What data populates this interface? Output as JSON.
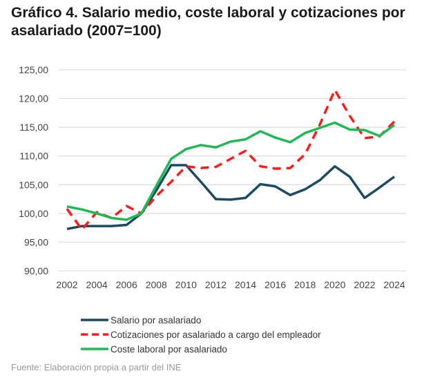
{
  "title": "Gráfico 4. Salario medio, coste laboral y cotizaciones por asalariado (2007=100)",
  "source": "Fuente: Elaboración propia a partir del INE",
  "chart_data": {
    "type": "line",
    "title": "Gráfico 4. Salario medio, coste laboral y cotizaciones por asalariado (2007=100)",
    "xlabel": "",
    "ylabel": "",
    "ylim": [
      90,
      125
    ],
    "yticks": [
      "90,00",
      "95,00",
      "100,00",
      "105,00",
      "110,00",
      "115,00",
      "120,00",
      "125,00"
    ],
    "xtick_labels": [
      "2002",
      "2004",
      "2006",
      "2008",
      "2010",
      "2012",
      "2014",
      "2016",
      "2018",
      "2020",
      "2022",
      "2024"
    ],
    "grid": true,
    "legend_placement": "bottom",
    "x": [
      2002,
      2003,
      2004,
      2005,
      2006,
      2007,
      2008,
      2009,
      2010,
      2011,
      2012,
      2013,
      2014,
      2015,
      2016,
      2017,
      2018,
      2019,
      2020,
      2021,
      2022,
      2023,
      2024
    ],
    "series": [
      {
        "name": "Salario por asalariado",
        "color": "#1b4a63",
        "dash": false,
        "values": [
          97.3,
          97.8,
          97.8,
          97.8,
          98.0,
          100,
          104,
          108.4,
          108.4,
          105.5,
          102.5,
          102.4,
          102.7,
          105.1,
          104.7,
          103.2,
          104.2,
          105.8,
          108.2,
          106.4,
          102.7,
          104.5,
          106.4
        ]
      },
      {
        "name": "Cotizaciones por asalariado a cargo del empleador",
        "color": "#ff1a1a",
        "dash": true,
        "values": [
          100.8,
          97.2,
          100.2,
          99.2,
          101.3,
          100,
          103,
          105.5,
          108.2,
          107.9,
          108.1,
          109.5,
          110.9,
          108.2,
          107.8,
          107.9,
          110.3,
          115.5,
          121.5,
          117,
          113.1,
          113.4,
          116
        ]
      },
      {
        "name": "Coste laboral por asalariado",
        "color": "#1db954",
        "dash": false,
        "values": [
          101.2,
          100.7,
          100.0,
          99.2,
          98.9,
          100,
          104.8,
          109.5,
          111.2,
          111.9,
          111.5,
          112.5,
          112.9,
          114.3,
          113.2,
          112.4,
          114,
          114.9,
          115.8,
          114.6,
          114.5,
          113.5,
          115.4
        ]
      }
    ]
  }
}
